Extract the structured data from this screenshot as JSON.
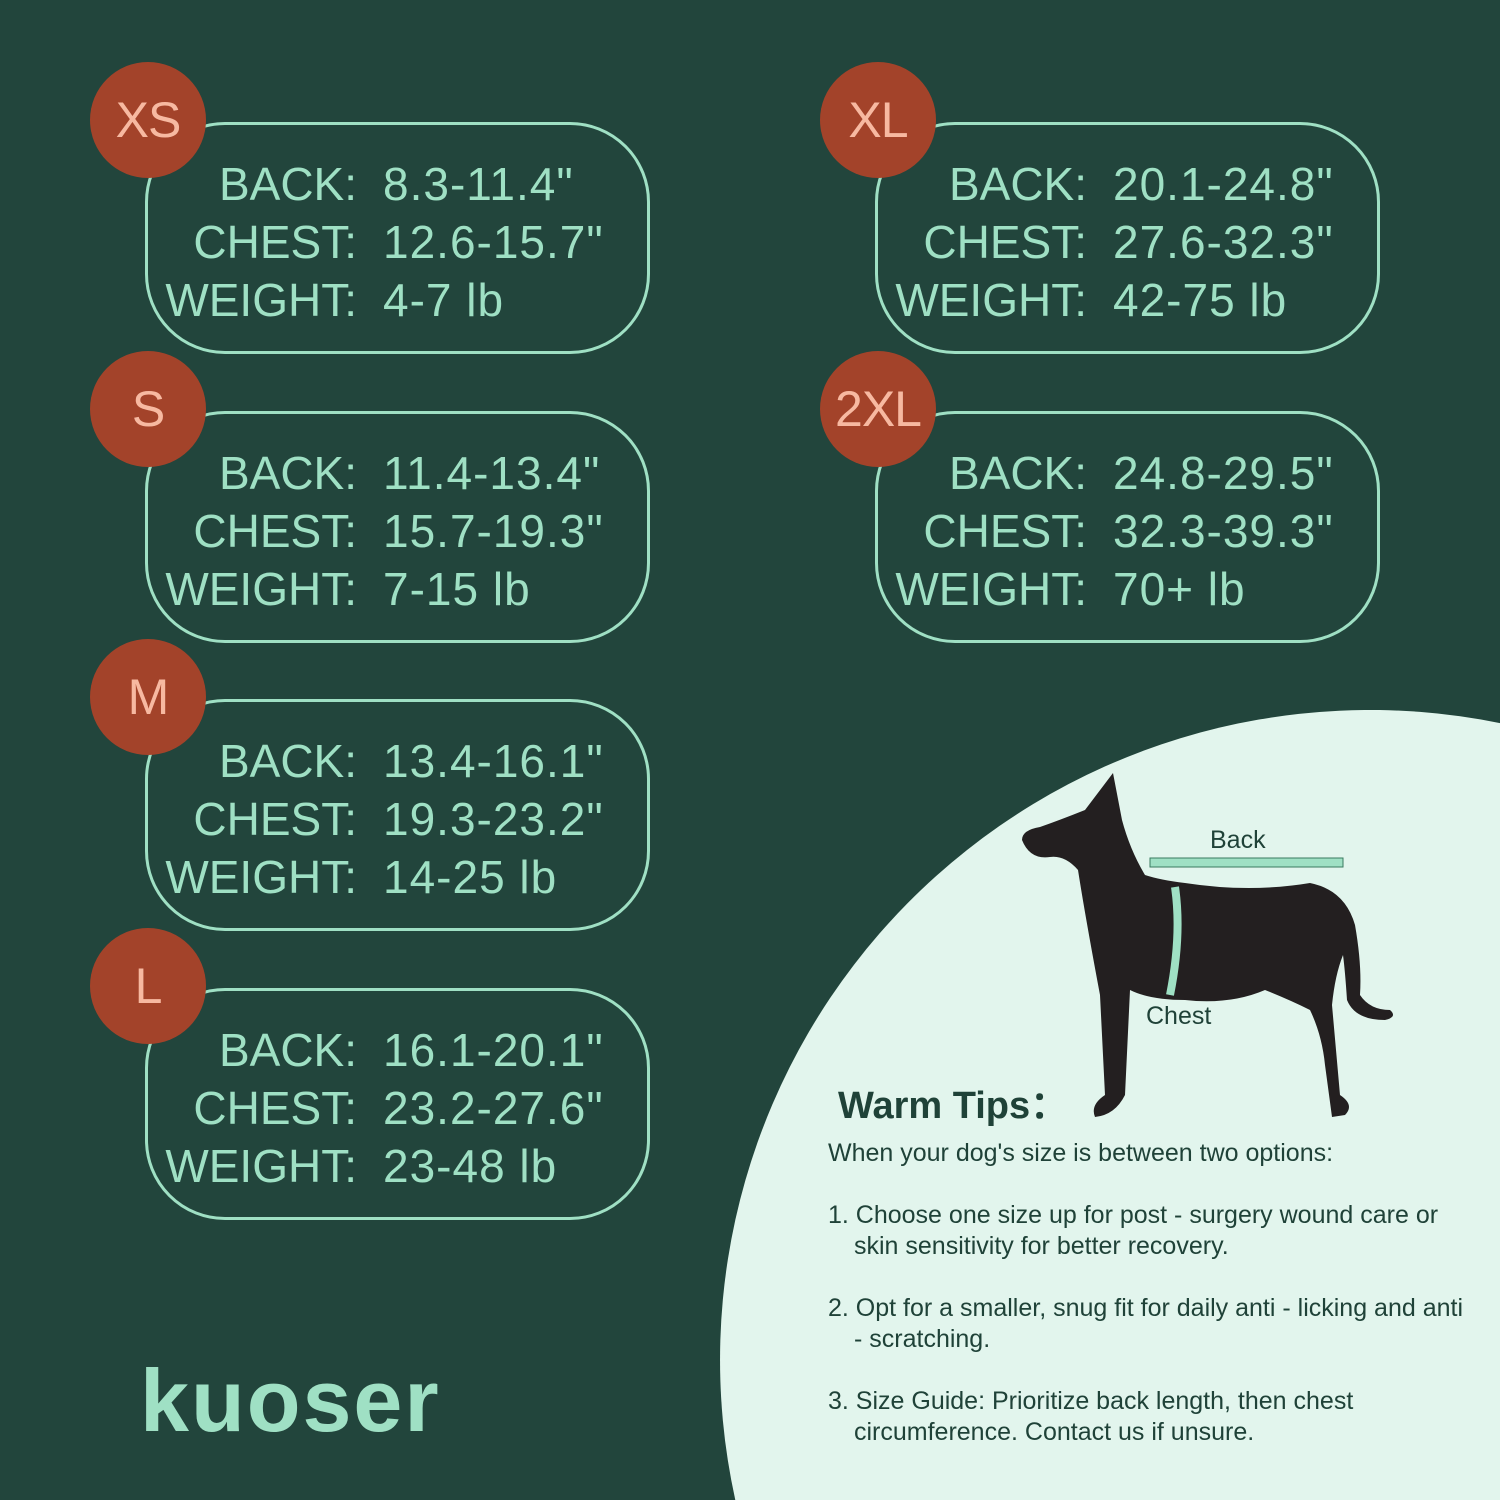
{
  "sizes": [
    {
      "size": "XS",
      "back": "8.3-11.4\"",
      "chest": "12.6-15.7\"",
      "weight": "4-7 lb"
    },
    {
      "size": "S",
      "back": "11.4-13.4\"",
      "chest": "15.7-19.3\"",
      "weight": "7-15 lb"
    },
    {
      "size": "M",
      "back": "13.4-16.1\"",
      "chest": "19.3-23.2\"",
      "weight": "14-25 lb"
    },
    {
      "size": "L",
      "back": "16.1-20.1\"",
      "chest": "23.2-27.6\"",
      "weight": "23-48 lb"
    },
    {
      "size": "XL",
      "back": "20.1-24.8\"",
      "chest": "27.6-32.3\"",
      "weight": "42-75 lb"
    },
    {
      "size": "2XL",
      "back": "24.8-29.5\"",
      "chest": "32.3-39.3\"",
      "weight": "70+ lb"
    }
  ],
  "labels": {
    "back": "BACK:",
    "chest": "CHEST:",
    "weight": "WEIGHT:"
  },
  "diagram": {
    "back": "Back",
    "chest": "Chest"
  },
  "tips": {
    "title": "Warm Tips：",
    "intro": "When your dog's size is between two options:",
    "items": [
      "1. Choose one size up for post - surgery wound care or skin sensitivity for better recovery.",
      "2. Opt for a smaller, snug fit for daily anti - licking and anti - scratching.",
      "3. Size Guide: Prioritize back length, then chest circumference. Contact us if unsure."
    ]
  },
  "brand": "kuoser",
  "colors": {
    "background": "#22453c",
    "accent": "#9fe0c4",
    "badge": "#a3432a",
    "badge_text": "#f7b9a1",
    "panel": "#e2f5ed"
  }
}
